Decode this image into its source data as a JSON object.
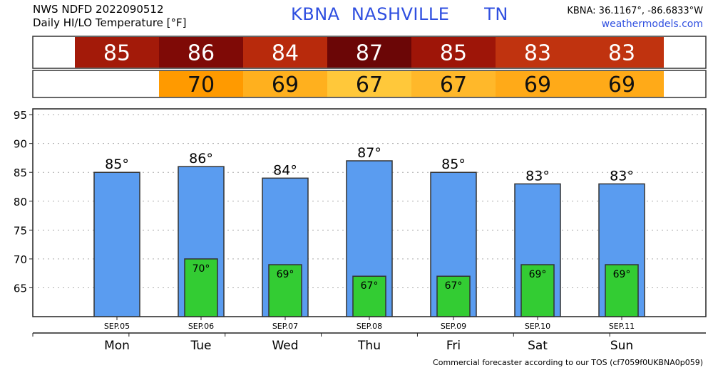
{
  "header": {
    "title_line1": "NWS NDFD 2022090512",
    "title_line2": "Daily HI/LO Temperature [°F]",
    "station_label": "KBNA  NASHVILLE      TN",
    "coords": "KBNA: 36.1167°, -86.6833°W",
    "website": "weathermodels.com"
  },
  "footer": {
    "text": "Commercial forecaster according to our TOS (cf7059f0UKBNA0p059)"
  },
  "colors": {
    "high_bar": "#5a9cf0",
    "low_bar": "#33cc33",
    "title_blue": "#2f4fe0"
  },
  "chart_data": {
    "type": "bar",
    "categories": [
      "Mon",
      "Tue",
      "Wed",
      "Thu",
      "Fri",
      "Sat",
      "Sun"
    ],
    "dates": [
      "SEP.05",
      "SEP.06",
      "SEP.07",
      "SEP.08",
      "SEP.09",
      "SEP.10",
      "SEP.11"
    ],
    "series": [
      {
        "values": [
          85,
          86,
          84,
          87,
          85,
          83,
          83
        ],
        "labels": [
          "85°",
          "86°",
          "84°",
          "87°",
          "85°",
          "83°",
          "83°"
        ]
      },
      {
        "values": [
          null,
          70,
          69,
          67,
          67,
          69,
          69
        ],
        "labels": [
          "",
          "70°",
          "69°",
          "67°",
          "67°",
          "69°",
          "69°"
        ]
      }
    ],
    "high_strip": {
      "values": [
        "85",
        "86",
        "84",
        "87",
        "85",
        "83",
        "83"
      ],
      "colors": [
        "#a31a09",
        "#7f0a06",
        "#b82a0c",
        "#6b0606",
        "#9e1508",
        "#c0330f",
        "#c0330f"
      ]
    },
    "low_strip": {
      "values": [
        "",
        "70",
        "69",
        "67",
        "67",
        "69",
        "69"
      ],
      "colors": [
        "",
        "#ff9a00",
        "#ffb01e",
        "#ffc83a",
        "#ffb82a",
        "#ffaa18",
        "#ffaa18"
      ]
    },
    "yticks": [
      65,
      70,
      75,
      80,
      85,
      90,
      95
    ],
    "ylim": [
      60,
      96
    ],
    "grid": true
  }
}
